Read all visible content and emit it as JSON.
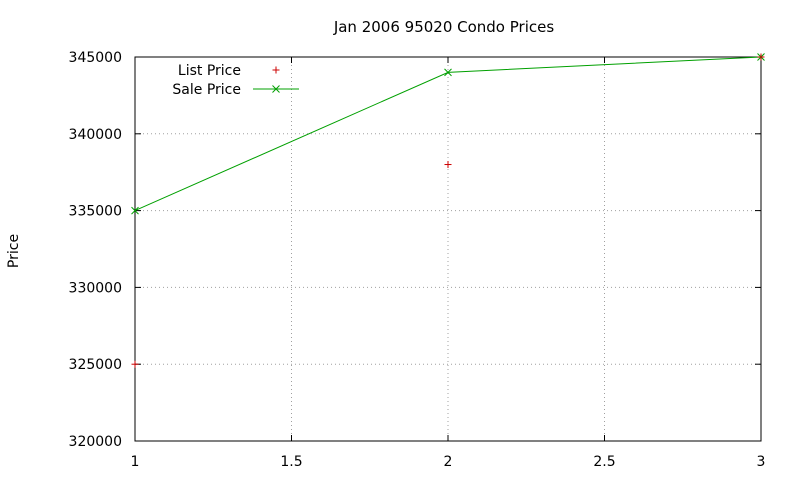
{
  "chart_data": {
    "type": "line",
    "title": "Jan 2006 95020 Condo Prices",
    "xlabel": "",
    "ylabel": "Price",
    "xlim": [
      1,
      3
    ],
    "ylim": [
      320000,
      345000
    ],
    "x_ticks": [
      "1",
      "1.5",
      "2",
      "2.5",
      "3"
    ],
    "y_ticks": [
      "320000",
      "325000",
      "330000",
      "335000",
      "340000",
      "345000"
    ],
    "grid": true,
    "legend_position": "top-left",
    "series": [
      {
        "name": "List Price",
        "style": "points",
        "marker": "plus",
        "color": "#cc0000",
        "points": [
          {
            "x": 1,
            "y": 325000
          },
          {
            "x": 2,
            "y": 338000
          },
          {
            "x": 3,
            "y": 345000
          }
        ]
      },
      {
        "name": "Sale Price",
        "style": "linespoints",
        "marker": "cross",
        "color": "#00a000",
        "points": [
          {
            "x": 1,
            "y": 335000
          },
          {
            "x": 2,
            "y": 344000
          },
          {
            "x": 3,
            "y": 345000
          }
        ]
      }
    ]
  }
}
